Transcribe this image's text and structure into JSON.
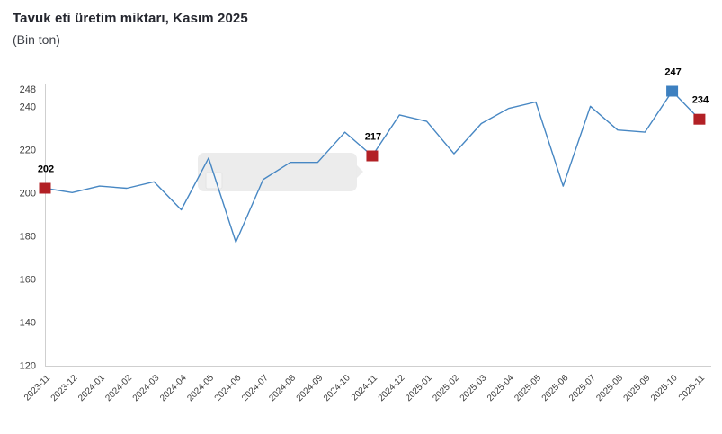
{
  "chart_data": {
    "type": "line",
    "title": "Tavuk eti üretim miktarı, Kasım 2025",
    "subtitle": "(Bin ton)",
    "unit": "Bin ton",
    "x": [
      "2023-11",
      "2023-12",
      "2024-01",
      "2024-02",
      "2024-03",
      "2024-04",
      "2024-05",
      "2024-06",
      "2024-07",
      "2024-08",
      "2024-09",
      "2024-10",
      "2024-11",
      "2024-12",
      "2025-01",
      "2025-02",
      "2025-03",
      "2025-04",
      "2025-05",
      "2025-06",
      "2025-07",
      "2025-08",
      "2025-09",
      "2025-10",
      "2025-11"
    ],
    "values": [
      202,
      200,
      203,
      202,
      205,
      192,
      216,
      177,
      206,
      214,
      214,
      228,
      217,
      236,
      233,
      218,
      232,
      239,
      242,
      203,
      240,
      229,
      228,
      247,
      234
    ],
    "yticks": [
      120,
      140,
      160,
      180,
      200,
      220,
      240,
      248
    ],
    "ylim": [
      120,
      248
    ],
    "grid": false,
    "legend": "none",
    "line_color": "#4787c3",
    "labeled_points": [
      {
        "month": "2023-11",
        "value": 202,
        "label": "202",
        "color": "#b22025",
        "shape": "square"
      },
      {
        "month": "2024-11",
        "value": 217,
        "label": "217",
        "color": "#b22025",
        "shape": "square"
      },
      {
        "month": "2025-10",
        "value": 247,
        "label": "247",
        "color": "#3d80c0",
        "shape": "square"
      },
      {
        "month": "2025-11",
        "value": 234,
        "label": "234",
        "color": "#b22025",
        "shape": "square"
      }
    ],
    "empty_tooltip": {
      "visible": true,
      "anchor_month": "2024-11",
      "text": ""
    }
  },
  "colors": {
    "background": "#ffffff",
    "axis": "#cfcfcf",
    "tick_text": "#3d3d3d",
    "title_text": "#24262e",
    "subtitle_text": "#3f4249",
    "point_label_text": "#000000",
    "tooltip_fill": "#ebebeb",
    "tooltip_inner": "#f5f5f5"
  }
}
